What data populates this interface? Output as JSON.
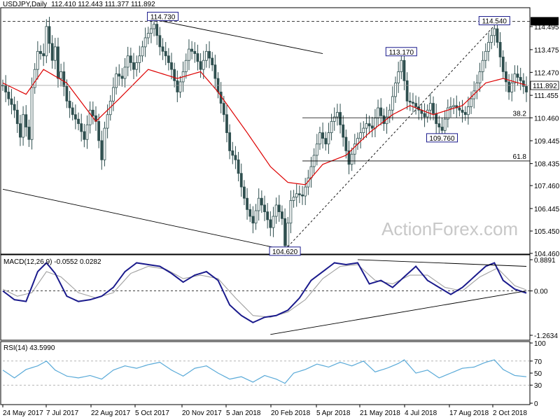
{
  "header": {
    "symbol": "USDJPY,Daily",
    "ohlc": "112.410 112.443 111.377 111.892"
  },
  "watermark": "ActionForex.com",
  "chart_data": [
    {
      "type": "candlestick",
      "panel": "price",
      "ylim": [
        104.46,
        115.3
      ],
      "y_ticks": [
        "114.730",
        "114.495",
        "113.475",
        "112.470",
        "111.455",
        "110.460",
        "109.445",
        "108.435",
        "107.460",
        "106.445",
        "105.450",
        "104.460"
      ],
      "current_price": "111.892",
      "top_line_price": "114.730",
      "price_series": [
        [
          0,
          111.9
        ],
        [
          2,
          111.3
        ],
        [
          4,
          110.8
        ],
        [
          6,
          109.6
        ],
        [
          7,
          110.6
        ],
        [
          9,
          109.5
        ],
        [
          10,
          111.8
        ],
        [
          12,
          113.4
        ],
        [
          14,
          113.2
        ],
        [
          15,
          114.5
        ],
        [
          17,
          113.0
        ],
        [
          18,
          113.6
        ],
        [
          19,
          112.2
        ],
        [
          20,
          112.5
        ],
        [
          22,
          111.2
        ],
        [
          24,
          110.6
        ],
        [
          26,
          110.2
        ],
        [
          28,
          109.5
        ],
        [
          30,
          110.8
        ],
        [
          32,
          110.3
        ],
        [
          34,
          108.6
        ],
        [
          35,
          110.0
        ],
        [
          37,
          111.2
        ],
        [
          39,
          112.4
        ],
        [
          41,
          112.2
        ],
        [
          43,
          113.2
        ],
        [
          45,
          112.6
        ],
        [
          47,
          113.2
        ],
        [
          49,
          114.0
        ],
        [
          51,
          114.4
        ],
        [
          52,
          114.6
        ],
        [
          54,
          113.6
        ],
        [
          56,
          113.2
        ],
        [
          58,
          112.6
        ],
        [
          60,
          111.6
        ],
        [
          62,
          112.5
        ],
        [
          64,
          113.5
        ],
        [
          66,
          113.3
        ],
        [
          68,
          112.6
        ],
        [
          70,
          113.4
        ],
        [
          72,
          112.8
        ],
        [
          74,
          111.6
        ],
        [
          76,
          110.6
        ],
        [
          78,
          109.0
        ],
        [
          80,
          108.6
        ],
        [
          82,
          107.4
        ],
        [
          84,
          106.4
        ],
        [
          86,
          105.8
        ],
        [
          88,
          106.9
        ],
        [
          90,
          106.3
        ],
        [
          92,
          105.6
        ],
        [
          94,
          106.6
        ],
        [
          96,
          106.0
        ],
        [
          97,
          104.8
        ],
        [
          99,
          106.8
        ],
        [
          101,
          107.1
        ],
        [
          103,
          107.0
        ],
        [
          105,
          107.8
        ],
        [
          107,
          108.8
        ],
        [
          109,
          109.8
        ],
        [
          111,
          109.3
        ],
        [
          113,
          110.3
        ],
        [
          115,
          110.7
        ],
        [
          117,
          109.6
        ],
        [
          119,
          108.4
        ],
        [
          121,
          109.3
        ],
        [
          123,
          109.8
        ],
        [
          125,
          110.2
        ],
        [
          127,
          110.0
        ],
        [
          129,
          110.9
        ],
        [
          131,
          110.2
        ],
        [
          133,
          110.8
        ],
        [
          135,
          112.0
        ],
        [
          137,
          113.0
        ],
        [
          139,
          111.2
        ],
        [
          141,
          111.1
        ],
        [
          143,
          110.8
        ],
        [
          145,
          110.5
        ],
        [
          147,
          111.1
        ],
        [
          149,
          110.2
        ],
        [
          151,
          109.9
        ],
        [
          153,
          110.9
        ],
        [
          155,
          111.0
        ],
        [
          157,
          110.8
        ],
        [
          159,
          110.6
        ],
        [
          161,
          111.3
        ],
        [
          163,
          112.0
        ],
        [
          165,
          113.0
        ],
        [
          167,
          113.8
        ],
        [
          169,
          114.4
        ],
        [
          170,
          113.8
        ],
        [
          172,
          112.5
        ],
        [
          174,
          111.6
        ],
        [
          176,
          112.4
        ],
        [
          178,
          112.1
        ],
        [
          180,
          111.6
        ]
      ],
      "ma_series": [
        [
          0,
          112.0
        ],
        [
          8,
          111.5
        ],
        [
          14,
          112.6
        ],
        [
          22,
          112.0
        ],
        [
          32,
          110.3
        ],
        [
          40,
          111.3
        ],
        [
          50,
          112.6
        ],
        [
          60,
          112.2
        ],
        [
          68,
          112.5
        ],
        [
          74,
          111.6
        ],
        [
          84,
          109.8
        ],
        [
          92,
          108.3
        ],
        [
          98,
          107.6
        ],
        [
          104,
          107.5
        ],
        [
          110,
          108.4
        ],
        [
          118,
          108.8
        ],
        [
          126,
          109.8
        ],
        [
          134,
          110.6
        ],
        [
          140,
          111.0
        ],
        [
          148,
          110.6
        ],
        [
          158,
          111.0
        ],
        [
          166,
          112.0
        ],
        [
          172,
          112.2
        ],
        [
          180,
          111.9
        ]
      ],
      "annotations": [
        {
          "label": "114.730",
          "i": 55,
          "price": 114.73
        },
        {
          "label": "114.540",
          "i": 169,
          "price": 114.54
        },
        {
          "label": "113.170",
          "i": 137,
          "price": 113.17
        },
        {
          "label": "109.760",
          "i": 151,
          "price": 109.76
        },
        {
          "label": "104.620",
          "i": 97,
          "price": 104.62
        }
      ],
      "fib_levels": [
        {
          "label": "38.2",
          "price": 110.46
        },
        {
          "label": "61.8",
          "price": 108.55
        }
      ],
      "trendlines": [
        {
          "type": "solid",
          "from": [
            55,
            114.73
          ],
          "to": [
            110,
            113.3
          ]
        },
        {
          "type": "solid",
          "from": [
            0,
            107.3
          ],
          "to": [
            97,
            104.62
          ]
        },
        {
          "type": "dashed",
          "from": [
            97,
            104.62
          ],
          "to": [
            169,
            114.54
          ]
        }
      ]
    },
    {
      "type": "line",
      "panel": "macd",
      "title": "MACD(12,26,9) -0.0552 0.0282",
      "ylim": [
        -1.3634,
        0.9891
      ],
      "y_ticks": [
        "0.8891",
        "0.00",
        "-1.2634"
      ],
      "macd": [
        [
          0,
          0.0
        ],
        [
          4,
          -0.25
        ],
        [
          8,
          -0.3
        ],
        [
          12,
          0.55
        ],
        [
          15,
          0.8
        ],
        [
          18,
          0.5
        ],
        [
          22,
          -0.15
        ],
        [
          26,
          -0.3
        ],
        [
          30,
          -0.25
        ],
        [
          34,
          -0.15
        ],
        [
          38,
          0.1
        ],
        [
          42,
          0.55
        ],
        [
          46,
          0.8
        ],
        [
          50,
          0.75
        ],
        [
          54,
          0.7
        ],
        [
          58,
          0.5
        ],
        [
          62,
          0.25
        ],
        [
          66,
          0.45
        ],
        [
          70,
          0.55
        ],
        [
          74,
          0.3
        ],
        [
          78,
          -0.4
        ],
        [
          82,
          -0.7
        ],
        [
          86,
          -0.9
        ],
        [
          90,
          -0.75
        ],
        [
          94,
          -0.7
        ],
        [
          98,
          -0.55
        ],
        [
          102,
          -0.2
        ],
        [
          106,
          0.3
        ],
        [
          110,
          0.55
        ],
        [
          114,
          0.8
        ],
        [
          118,
          0.75
        ],
        [
          122,
          0.8
        ],
        [
          126,
          0.2
        ],
        [
          130,
          0.3
        ],
        [
          134,
          0.1
        ],
        [
          138,
          0.4
        ],
        [
          142,
          0.7
        ],
        [
          146,
          0.3
        ],
        [
          150,
          0.1
        ],
        [
          154,
          -0.1
        ],
        [
          158,
          0.1
        ],
        [
          162,
          0.4
        ],
        [
          166,
          0.7
        ],
        [
          169,
          0.8
        ],
        [
          172,
          0.3
        ],
        [
          176,
          0.05
        ],
        [
          180,
          -0.06
        ]
      ],
      "signal": [
        [
          0,
          0.05
        ],
        [
          5,
          -0.15
        ],
        [
          10,
          -0.05
        ],
        [
          15,
          0.55
        ],
        [
          20,
          0.4
        ],
        [
          26,
          -0.05
        ],
        [
          32,
          -0.2
        ],
        [
          38,
          -0.05
        ],
        [
          44,
          0.5
        ],
        [
          50,
          0.7
        ],
        [
          56,
          0.62
        ],
        [
          62,
          0.35
        ],
        [
          68,
          0.45
        ],
        [
          74,
          0.35
        ],
        [
          80,
          -0.2
        ],
        [
          86,
          -0.7
        ],
        [
          92,
          -0.75
        ],
        [
          98,
          -0.6
        ],
        [
          104,
          -0.25
        ],
        [
          110,
          0.35
        ],
        [
          116,
          0.7
        ],
        [
          122,
          0.75
        ],
        [
          128,
          0.3
        ],
        [
          134,
          0.2
        ],
        [
          140,
          0.45
        ],
        [
          146,
          0.45
        ],
        [
          152,
          0.1
        ],
        [
          158,
          0.0
        ],
        [
          164,
          0.4
        ],
        [
          170,
          0.65
        ],
        [
          176,
          0.15
        ],
        [
          180,
          0.03
        ]
      ],
      "trendlines": [
        {
          "from": [
            92,
            -1.24
          ],
          "to": [
            180,
            0.0
          ]
        },
        {
          "from": [
            122,
            0.89
          ],
          "to": [
            180,
            0.7
          ]
        }
      ]
    },
    {
      "type": "line",
      "panel": "rsi",
      "title": "RSI(14) 43.5990",
      "ylim": [
        0,
        100
      ],
      "y_ticks": [
        "100",
        "70",
        "50",
        "30",
        "0"
      ],
      "levels": [
        30,
        70
      ],
      "rsi": [
        [
          0,
          55
        ],
        [
          4,
          42
        ],
        [
          8,
          56
        ],
        [
          12,
          62
        ],
        [
          15,
          70
        ],
        [
          18,
          55
        ],
        [
          22,
          45
        ],
        [
          26,
          42
        ],
        [
          30,
          46
        ],
        [
          34,
          40
        ],
        [
          38,
          55
        ],
        [
          42,
          62
        ],
        [
          46,
          58
        ],
        [
          50,
          64
        ],
        [
          54,
          68
        ],
        [
          58,
          55
        ],
        [
          62,
          45
        ],
        [
          66,
          58
        ],
        [
          70,
          62
        ],
        [
          74,
          50
        ],
        [
          78,
          40
        ],
        [
          82,
          44
        ],
        [
          86,
          35
        ],
        [
          90,
          46
        ],
        [
          94,
          40
        ],
        [
          97,
          33
        ],
        [
          100,
          50
        ],
        [
          104,
          56
        ],
        [
          108,
          65
        ],
        [
          112,
          60
        ],
        [
          116,
          68
        ],
        [
          120,
          62
        ],
        [
          124,
          70
        ],
        [
          128,
          52
        ],
        [
          132,
          58
        ],
        [
          136,
          66
        ],
        [
          138,
          72
        ],
        [
          142,
          50
        ],
        [
          146,
          55
        ],
        [
          150,
          42
        ],
        [
          154,
          50
        ],
        [
          158,
          58
        ],
        [
          162,
          60
        ],
        [
          166,
          68
        ],
        [
          169,
          72
        ],
        [
          172,
          56
        ],
        [
          176,
          46
        ],
        [
          180,
          44
        ]
      ]
    }
  ],
  "x_axis": {
    "labels": [
      "24 May 2017",
      "7 Jul 2017",
      "22 Aug 2017",
      "5 Oct 2017",
      "20 Nov 2017",
      "5 Jan 2018",
      "20 Feb 2018",
      "5 Apr 2018",
      "21 May 2018",
      "4 Jul 2018",
      "17 Aug 2018",
      "2 Oct 2018"
    ],
    "label_index": [
      0,
      30,
      61,
      92,
      122,
      153,
      184,
      214,
      245,
      275,
      306,
      336
    ]
  },
  "colors": {
    "candle": "#2f4f4f",
    "ma": "#dd0000",
    "macd": "#1a1a8c",
    "signal": "#a0a0a0",
    "rsi": "#5aaad8",
    "trendline": "#000000",
    "price_label_bg": "#000000"
  }
}
